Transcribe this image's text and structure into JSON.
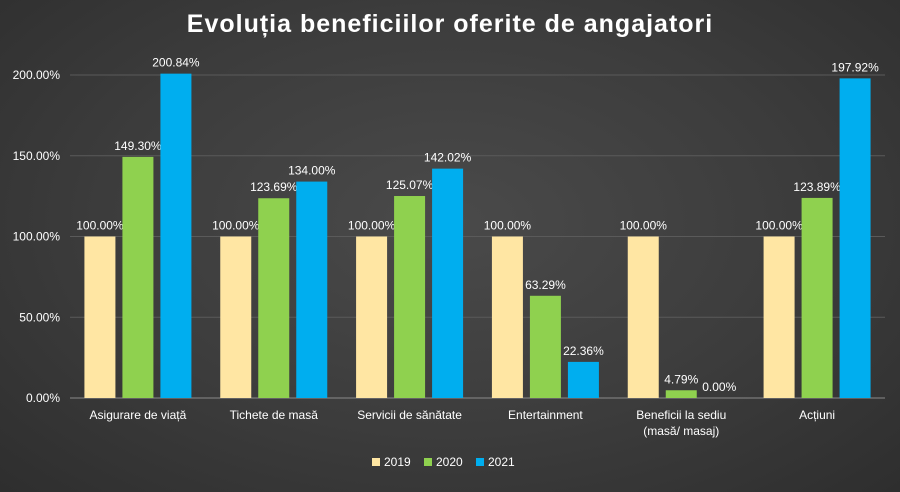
{
  "chart_data": {
    "type": "bar",
    "title": "Evoluția beneficiilor oferite de angajatori",
    "categories": [
      [
        "Asigurare de viață"
      ],
      [
        "Tichete de masă"
      ],
      [
        "Servicii de sănătate"
      ],
      [
        "Entertainment"
      ],
      [
        "Beneficii la sediu",
        "(masă/ masaj)"
      ],
      [
        "Acțiuni"
      ]
    ],
    "series": [
      {
        "name": "2019",
        "color": "#ffe6a3",
        "values": [
          100.0,
          100.0,
          100.0,
          100.0,
          100.0,
          100.0
        ],
        "labels": [
          "100.00%",
          "100.00%",
          "100.00%",
          "100.00%",
          "100.00%",
          "100.00%"
        ]
      },
      {
        "name": "2020",
        "color": "#8fd14f",
        "values": [
          149.3,
          123.69,
          125.07,
          63.29,
          4.79,
          123.89
        ],
        "labels": [
          "149.30%",
          "123.69%",
          "125.07%",
          "63.29%",
          "4.79%",
          "123.89%"
        ]
      },
      {
        "name": "2021",
        "color": "#00aeef",
        "values": [
          200.84,
          134.0,
          142.02,
          22.36,
          0.0,
          197.92
        ],
        "labels": [
          "200.84%",
          "134.00%",
          "142.02%",
          "22.36%",
          "0.00%",
          "197.92%"
        ]
      }
    ],
    "yticks": [
      0,
      50,
      100,
      150,
      200
    ],
    "ytick_labels": [
      "0.00%",
      "50.00%",
      "100.00%",
      "150.00%",
      "200.00%"
    ],
    "ylim": [
      0,
      200
    ],
    "grid": true,
    "legend_position": "bottom"
  }
}
